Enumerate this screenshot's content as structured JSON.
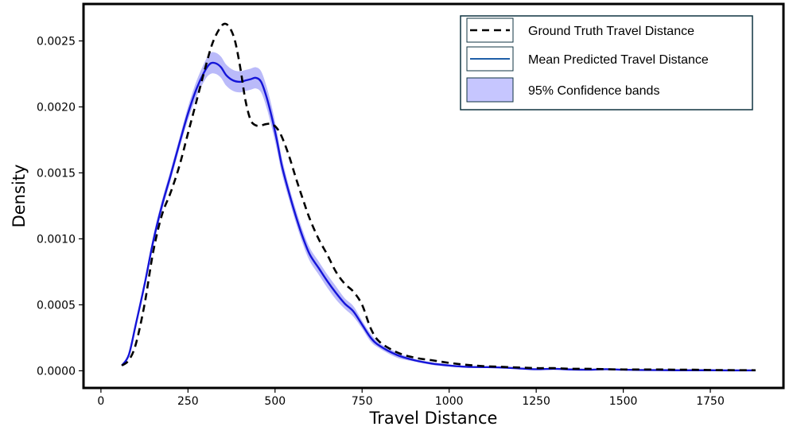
{
  "chart_data": {
    "type": "line",
    "xlabel": "Travel Distance",
    "ylabel": "Density",
    "xlim": [
      -50,
      1960
    ],
    "ylim": [
      -0.00013,
      0.00278
    ],
    "xticks": [
      0,
      250,
      500,
      750,
      1000,
      1250,
      1500,
      1750
    ],
    "xtick_labels": [
      "0",
      "250",
      "500",
      "750",
      "1000",
      "1250",
      "1500",
      "1750"
    ],
    "yticks": [
      0.0,
      0.0005,
      0.001,
      0.0015,
      0.002,
      0.0025
    ],
    "ytick_labels": [
      "0.0000",
      "0.0005",
      "0.0010",
      "0.0015",
      "0.0020",
      "0.0025"
    ],
    "grid": false,
    "legend_position": "top-right",
    "legend": [
      {
        "label": "Ground Truth Travel Distance",
        "style": "dashed-line"
      },
      {
        "label": "Mean Predicted Travel Distance",
        "style": "solid-line"
      },
      {
        "label": "95% Confidence bands",
        "style": "band"
      }
    ],
    "colors": {
      "ground_truth": "#000000",
      "mean_predicted": "#1414d8",
      "band_fill": "#8c8cf5",
      "legend_mean_line": "#1f5fa8",
      "legend_band_fill": "#c6c6ff",
      "legend_border": "#0f3340"
    },
    "series": [
      {
        "name": "Ground Truth Travel Distance",
        "x": [
          60,
          80,
          100,
          125,
          150,
          175,
          200,
          225,
          250,
          275,
          300,
          320,
          340,
          355,
          370,
          385,
          400,
          415,
          430,
          445,
          460,
          475,
          490,
          505,
          520,
          540,
          560,
          580,
          600,
          625,
          650,
          675,
          700,
          725,
          750,
          775,
          800,
          850,
          900,
          950,
          1000,
          1050,
          1100,
          1150,
          1200,
          1250,
          1300,
          1350,
          1400,
          1450,
          1500,
          1550,
          1600,
          1650,
          1700,
          1750,
          1800,
          1880
        ],
        "y": [
          4e-05,
          8e-05,
          0.0002,
          0.0005,
          0.0009,
          0.00118,
          0.00135,
          0.00155,
          0.0018,
          0.00205,
          0.0023,
          0.00248,
          0.00259,
          0.00263,
          0.0026,
          0.0025,
          0.0023,
          0.00205,
          0.0019,
          0.00186,
          0.00186,
          0.00187,
          0.00187,
          0.00184,
          0.00177,
          0.00163,
          0.00146,
          0.0013,
          0.00115,
          0.001,
          0.00088,
          0.00075,
          0.00066,
          0.0006,
          0.0005,
          0.00032,
          0.00022,
          0.00014,
          0.0001,
          8e-05,
          6e-05,
          4.5e-05,
          3.5e-05,
          3e-05,
          2.5e-05,
          2e-05,
          2e-05,
          1.5e-05,
          1.5e-05,
          1.2e-05,
          1e-05,
          1e-05,
          1e-05,
          8e-06,
          8e-06,
          6e-06,
          5e-06,
          4e-06
        ]
      },
      {
        "name": "Mean Predicted Travel Distance",
        "x": [
          60,
          80,
          100,
          125,
          150,
          175,
          200,
          225,
          250,
          275,
          300,
          315,
          330,
          345,
          360,
          380,
          400,
          415,
          430,
          445,
          460,
          475,
          490,
          505,
          520,
          540,
          560,
          580,
          600,
          625,
          650,
          675,
          700,
          725,
          750,
          775,
          800,
          850,
          900,
          950,
          1000,
          1050,
          1100,
          1150,
          1200,
          1250,
          1300,
          1350,
          1400,
          1450,
          1500,
          1550,
          1600,
          1650,
          1700,
          1750,
          1800,
          1880
        ],
        "y": [
          4e-05,
          0.00012,
          0.00035,
          0.00065,
          0.00098,
          0.00125,
          0.00148,
          0.00172,
          0.00195,
          0.00214,
          0.00228,
          0.00233,
          0.00233,
          0.0023,
          0.00224,
          0.0022,
          0.00219,
          0.0022,
          0.00221,
          0.00222,
          0.00219,
          0.00208,
          0.00193,
          0.00175,
          0.00155,
          0.00135,
          0.00117,
          0.00101,
          0.00088,
          0.00078,
          0.00068,
          0.00059,
          0.00051,
          0.00045,
          0.00035,
          0.00025,
          0.00019,
          0.00012,
          8e-05,
          5.5e-05,
          4e-05,
          3e-05,
          2.8e-05,
          2.5e-05,
          1.8e-05,
          1.2e-05,
          1.5e-05,
          1e-05,
          8e-06,
          1.2e-05,
          8e-06,
          6e-06,
          5e-06,
          4e-06,
          4e-06,
          4e-06,
          3e-06,
          3e-06
        ],
        "band_halfwidth": [
          5e-06,
          1e-05,
          2e-05,
          3e-05,
          4e-05,
          4e-05,
          4e-05,
          4e-05,
          5e-05,
          6e-05,
          7e-05,
          8e-05,
          8e-05,
          8e-05,
          8e-05,
          8e-05,
          8e-05,
          8e-05,
          8e-05,
          8e-05,
          8e-05,
          8e-05,
          8e-05,
          7e-05,
          6e-05,
          5e-05,
          5e-05,
          5e-05,
          5e-05,
          5e-05,
          5e-05,
          5e-05,
          4e-05,
          4e-05,
          3e-05,
          3e-05,
          2e-05,
          2e-05,
          1e-05,
          1e-05,
          8e-06,
          6e-06,
          5e-06,
          4e-06,
          4e-06,
          4e-06,
          4e-06,
          3e-06,
          3e-06,
          3e-06,
          3e-06,
          3e-06,
          2e-06,
          2e-06,
          2e-06,
          2e-06,
          2e-06,
          2e-06
        ]
      }
    ]
  }
}
